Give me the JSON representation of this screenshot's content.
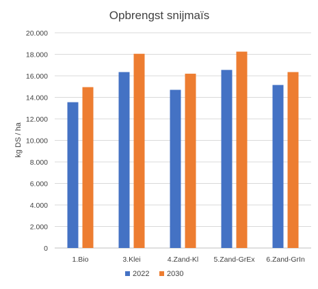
{
  "chart_data": {
    "type": "bar",
    "title": "Opbrengst snijmaïs",
    "xlabel": "",
    "ylabel": "kg DS / ha",
    "ylim": [
      0,
      20000
    ],
    "yticks": [
      "0",
      "2.000",
      "4.000",
      "6.000",
      "8.000",
      "10.000",
      "12.000",
      "14.000",
      "16.000",
      "18.000",
      "20.000"
    ],
    "categories": [
      "1.Bio",
      "3.Klei",
      "4.Zand-Kl",
      "5.Zand-GrEx",
      "6.Zand-GrIn"
    ],
    "series": [
      {
        "name": "2022",
        "color": "#4472c4",
        "values": [
          13550,
          16350,
          14700,
          16550,
          15150
        ]
      },
      {
        "name": "2030",
        "color": "#ed7d31",
        "values": [
          14950,
          18050,
          16200,
          18250,
          16350
        ]
      }
    ],
    "grid": true,
    "legend": "bottom"
  }
}
